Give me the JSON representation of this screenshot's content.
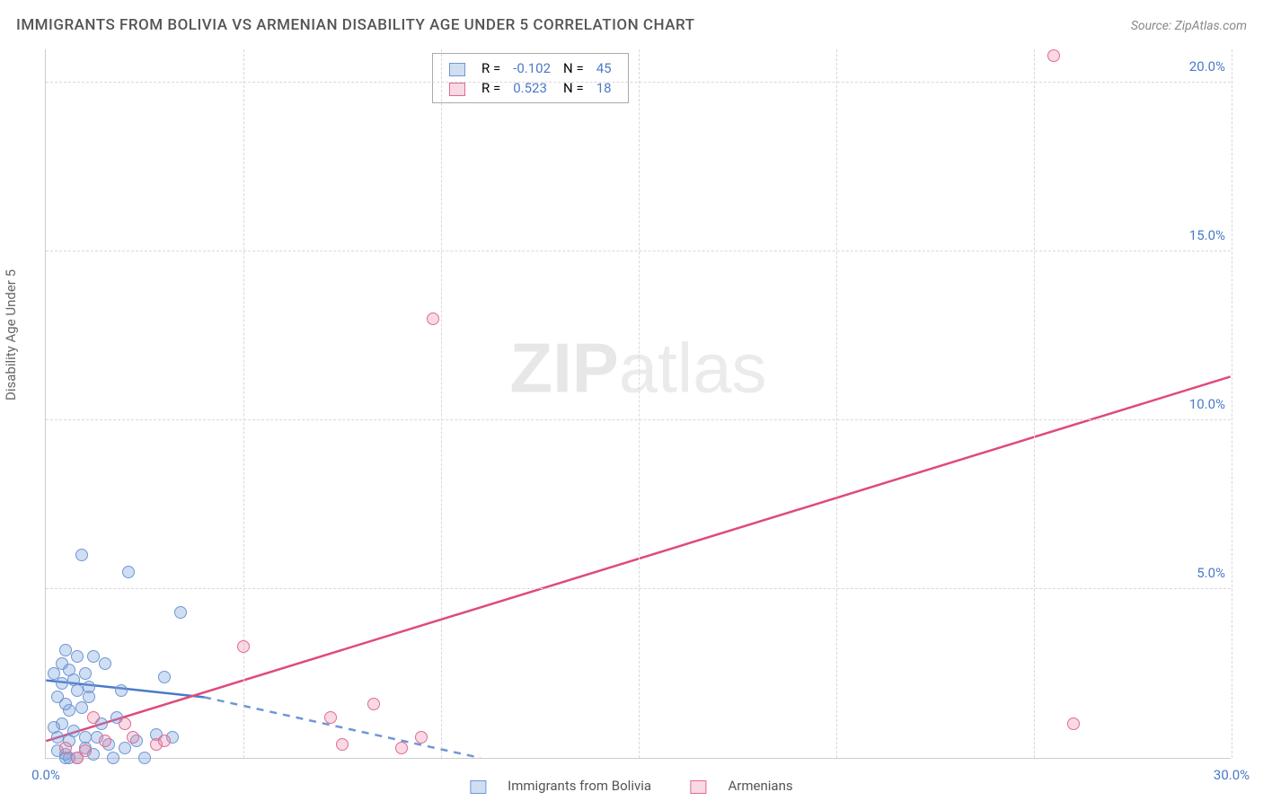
{
  "title": "IMMIGRANTS FROM BOLIVIA VS ARMENIAN DISABILITY AGE UNDER 5 CORRELATION CHART",
  "source": "Source: ZipAtlas.com",
  "y_axis_label": "Disability Age Under 5",
  "watermark_a": "ZIP",
  "watermark_b": "atlas",
  "chart": {
    "type": "scatter",
    "xlim": [
      0,
      30
    ],
    "ylim": [
      0,
      21
    ],
    "x_ticks": [
      0,
      30
    ],
    "y_ticks": [
      5,
      10,
      15,
      20
    ],
    "x_grid": [
      5,
      10,
      15,
      20,
      25,
      30
    ],
    "y_grid": [
      5,
      10,
      15,
      20
    ],
    "x_tick_labels": {
      "0": "0.0%",
      "30": "30.0%"
    },
    "y_tick_labels": {
      "5": "5.0%",
      "10": "10.0%",
      "15": "15.0%",
      "20": "20.0%"
    },
    "background_color": "#ffffff",
    "grid_color": "#d8d8d8",
    "axis_color": "#cccccc",
    "tick_label_color": "#4a7ac7",
    "series": [
      {
        "name": "Immigrants from Bolivia",
        "fill": "rgba(120,160,220,0.35)",
        "stroke": "#6f97d3",
        "line_solid": "#4a7ac7",
        "line_dash": "#6f97d3",
        "R": "-0.102",
        "N": "45",
        "points": [
          [
            0.3,
            0.2
          ],
          [
            0.5,
            0.1
          ],
          [
            0.6,
            0.5
          ],
          [
            0.8,
            0.0
          ],
          [
            1.0,
            0.3
          ],
          [
            0.4,
            1.0
          ],
          [
            0.6,
            1.4
          ],
          [
            0.8,
            2.0
          ],
          [
            1.0,
            2.5
          ],
          [
            1.2,
            3.0
          ],
          [
            0.9,
            6.0
          ],
          [
            2.1,
            5.5
          ],
          [
            0.5,
            3.2
          ],
          [
            1.5,
            2.8
          ],
          [
            1.8,
            1.2
          ],
          [
            1.3,
            0.6
          ],
          [
            0.7,
            0.8
          ],
          [
            1.1,
            1.8
          ],
          [
            1.6,
            0.4
          ],
          [
            2.0,
            0.3
          ],
          [
            2.3,
            0.5
          ],
          [
            2.8,
            0.7
          ],
          [
            3.0,
            2.4
          ],
          [
            3.2,
            0.6
          ],
          [
            3.4,
            4.3
          ],
          [
            0.4,
            2.2
          ],
          [
            0.6,
            2.6
          ],
          [
            0.9,
            1.5
          ],
          [
            1.4,
            1.0
          ],
          [
            0.3,
            1.8
          ],
          [
            0.5,
            0.0
          ],
          [
            1.7,
            0.0
          ],
          [
            2.5,
            0.0
          ],
          [
            0.2,
            2.5
          ],
          [
            0.4,
            2.8
          ],
          [
            0.7,
            2.3
          ],
          [
            1.0,
            0.6
          ],
          [
            1.2,
            0.1
          ],
          [
            0.3,
            0.6
          ],
          [
            0.8,
            3.0
          ],
          [
            1.1,
            2.1
          ],
          [
            0.5,
            1.6
          ],
          [
            0.2,
            0.9
          ],
          [
            0.6,
            0.0
          ],
          [
            1.9,
            2.0
          ]
        ],
        "trend": {
          "x1": 0,
          "y1": 2.3,
          "x2": 4.0,
          "y2": 1.8,
          "dash_x2": 11.0,
          "dash_y2": 0.0
        }
      },
      {
        "name": "Armenians",
        "fill": "rgba(235,130,165,0.30)",
        "stroke": "#e06b93",
        "line_solid": "#e04a7a",
        "R": "0.523",
        "N": "18",
        "points": [
          [
            0.5,
            0.3
          ],
          [
            1.0,
            0.2
          ],
          [
            1.5,
            0.5
          ],
          [
            2.2,
            0.6
          ],
          [
            2.8,
            0.4
          ],
          [
            3.0,
            0.5
          ],
          [
            5.0,
            3.3
          ],
          [
            7.2,
            1.2
          ],
          [
            7.5,
            0.4
          ],
          [
            8.3,
            1.6
          ],
          [
            9.0,
            0.3
          ],
          [
            9.5,
            0.6
          ],
          [
            9.8,
            13.0
          ],
          [
            2.0,
            1.0
          ],
          [
            1.2,
            1.2
          ],
          [
            0.8,
            0.0
          ],
          [
            25.5,
            20.8
          ],
          [
            26.0,
            1.0
          ]
        ],
        "trend": {
          "x1": 0,
          "y1": 0.5,
          "x2": 30,
          "y2": 11.3
        }
      }
    ]
  },
  "legend": {
    "col_R": "R =",
    "col_N": "N ="
  },
  "bottom_legend": {
    "a": "Immigrants from Bolivia",
    "b": "Armenians"
  }
}
